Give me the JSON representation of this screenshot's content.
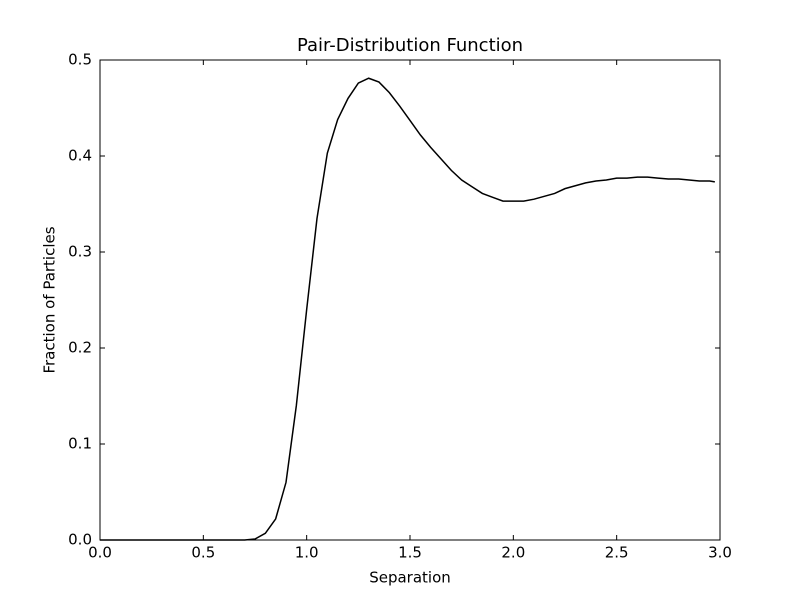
{
  "chart_data": {
    "type": "line",
    "title": "Pair-Distribution Function",
    "x_label": "Separation",
    "y_label": "Fraction of Particles",
    "x": [
      0,
      0.05,
      0.1,
      0.15,
      0.2,
      0.25,
      0.3,
      0.35,
      0.4,
      0.45,
      0.5,
      0.55,
      0.6,
      0.65,
      0.7,
      0.75,
      0.8,
      0.85,
      0.9,
      0.95,
      1.0,
      1.05,
      1.1,
      1.15,
      1.2,
      1.25,
      1.3,
      1.35,
      1.4,
      1.45,
      1.5,
      1.55,
      1.6,
      1.65,
      1.7,
      1.75,
      1.8,
      1.85,
      1.9,
      1.95,
      2.0,
      2.05,
      2.1,
      2.15,
      2.2,
      2.25,
      2.3,
      2.35,
      2.4,
      2.45,
      2.5,
      2.55,
      2.6,
      2.65,
      2.7,
      2.75,
      2.8,
      2.85,
      2.9,
      2.95,
      2.975
    ],
    "series": [
      {
        "color": "#000000",
        "values": [
          0,
          0,
          0,
          0,
          0,
          0,
          0,
          0,
          0,
          0,
          0,
          0,
          0,
          0,
          0,
          0.001,
          0.007,
          0.022,
          0.06,
          0.14,
          0.24,
          0.335,
          0.403,
          0.438,
          0.46,
          0.476,
          0.481,
          0.477,
          0.466,
          0.452,
          0.437,
          0.422,
          0.409,
          0.397,
          0.385,
          0.375,
          0.368,
          0.361,
          0.357,
          0.353,
          0.353,
          0.353,
          0.355,
          0.358,
          0.361,
          0.366,
          0.369,
          0.372,
          0.374,
          0.375,
          0.377,
          0.377,
          0.378,
          0.378,
          0.377,
          0.376,
          0.376,
          0.375,
          0.374,
          0.374,
          0.373
        ]
      }
    ],
    "xlim": [
      0,
      3
    ],
    "ylim": [
      0,
      0.5
    ],
    "xticks": [
      {
        "value": 0,
        "label": "0.0"
      },
      0.5,
      {
        "value": 1,
        "label": "1.0"
      },
      1.5,
      {
        "value": 2,
        "label": "2.0"
      },
      2.5,
      {
        "value": 3,
        "label": "3.0"
      }
    ],
    "yticks": [
      {
        "value": 0,
        "label": "0.0"
      },
      0.1,
      0.2,
      0.3,
      0.4,
      0.5
    ],
    "grid": false
  }
}
